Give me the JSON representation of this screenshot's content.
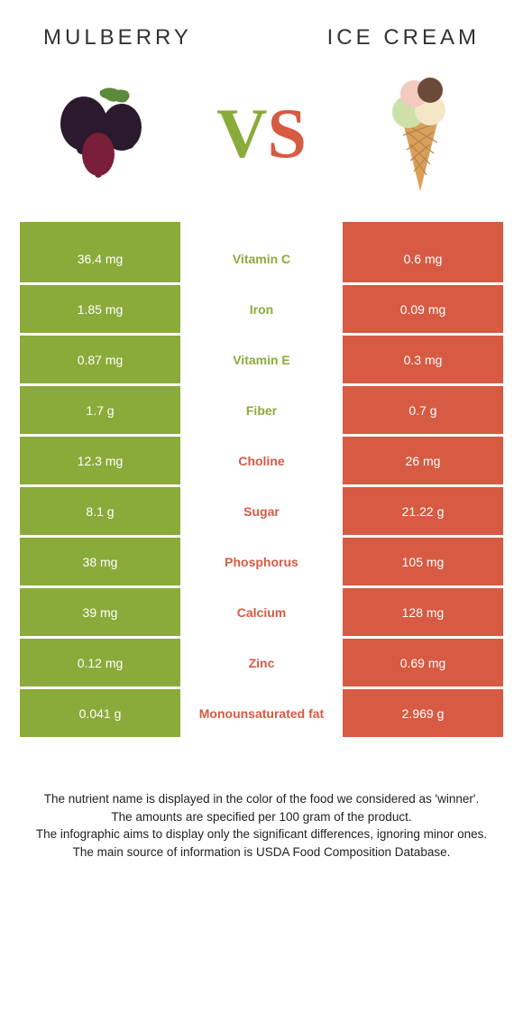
{
  "header": {
    "left_title": "Mulberry",
    "right_title": "Ice cream"
  },
  "vs": {
    "v": "V",
    "s": "S"
  },
  "colors": {
    "left": "#8aab3a",
    "right": "#d75a43",
    "mulberry_dark": "#2b1a2e",
    "mulberry_red": "#7a1f3a",
    "mulberry_leaf": "#5a8a3a",
    "cone": "#d9a05a",
    "cone_dark": "#b8824a",
    "scoop_green": "#cde0a8",
    "scoop_pink": "#f3c9c0",
    "scoop_brown": "#6b4a3a",
    "scoop_cream": "#f5e6c8"
  },
  "table": {
    "type": "comparison-table",
    "rows": [
      {
        "left": "36.4 mg",
        "label": "Vitamin C",
        "right": "0.6 mg",
        "winner": "left"
      },
      {
        "left": "1.85 mg",
        "label": "Iron",
        "right": "0.09 mg",
        "winner": "left"
      },
      {
        "left": "0.87 mg",
        "label": "Vitamin E",
        "right": "0.3 mg",
        "winner": "left"
      },
      {
        "left": "1.7 g",
        "label": "Fiber",
        "right": "0.7 g",
        "winner": "left"
      },
      {
        "left": "12.3 mg",
        "label": "Choline",
        "right": "26 mg",
        "winner": "right"
      },
      {
        "left": "8.1 g",
        "label": "Sugar",
        "right": "21.22 g",
        "winner": "right"
      },
      {
        "left": "38 mg",
        "label": "Phosphorus",
        "right": "105 mg",
        "winner": "right"
      },
      {
        "left": "39 mg",
        "label": "Calcium",
        "right": "128 mg",
        "winner": "right"
      },
      {
        "left": "0.12 mg",
        "label": "Zinc",
        "right": "0.69 mg",
        "winner": "right"
      },
      {
        "left": "0.041 g",
        "label": "Monounsaturated fat",
        "right": "2.969 g",
        "winner": "right"
      }
    ]
  },
  "footnotes": {
    "line1": "The nutrient name is displayed in the color of the food we considered as 'winner'.",
    "line2": "The amounts are specified per 100 gram of the product.",
    "line3": "The infographic aims to display only the significant differences, ignoring minor ones.",
    "line4": "The main source of information is USDA Food Composition Database."
  }
}
